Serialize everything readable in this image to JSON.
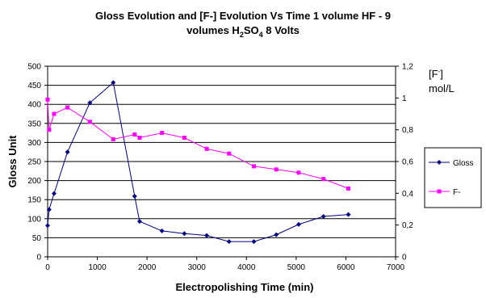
{
  "chart_data": {
    "type": "line",
    "title_line1": "Gloss Evolution and [F-] Evolution Vs Time  1 volume HF - 9",
    "title_line2_prefix": "volumes H",
    "title_line2_sub1": "2",
    "title_line2_mid": "SO",
    "title_line2_sub2": "4",
    "title_line2_suffix": "  8 Volts",
    "xlabel": "Electropolishing Time (min)",
    "ylabel": "Gloss Unit",
    "y2label_line1": "[F",
    "y2label_sup": "-",
    "y2label_line1_end": "]",
    "y2label_line2": "mol/L",
    "xlim": [
      0,
      7000
    ],
    "ylim": [
      0,
      500
    ],
    "y2lim": [
      0,
      1.2
    ],
    "x_ticks": [
      "0",
      "1000",
      "2000",
      "3000",
      "4000",
      "5000",
      "6000",
      "7000"
    ],
    "y_ticks": [
      "0",
      "50",
      "100",
      "150",
      "200",
      "250",
      "300",
      "350",
      "400",
      "450",
      "500"
    ],
    "y2_ticks": [
      "0",
      "0,2",
      "0,4",
      "0,6",
      "0,8",
      "1",
      "1,2"
    ],
    "grid": "horizontal",
    "legend_position": "right",
    "series": [
      {
        "name": "Gloss",
        "axis": "left",
        "color": "#000080",
        "marker": "diamond",
        "x": [
          0,
          30,
          130,
          400,
          850,
          1320,
          1750,
          1850,
          2300,
          2750,
          3200,
          3650,
          4150,
          4600,
          5050,
          5550,
          6050
        ],
        "y": [
          82,
          124,
          166,
          275,
          404,
          457,
          159,
          93,
          68,
          61,
          56,
          40,
          40,
          58,
          85,
          106,
          111
        ]
      },
      {
        "name": "F-",
        "axis": "right",
        "color": "#FF00FF",
        "marker": "square",
        "x": [
          0,
          30,
          130,
          400,
          850,
          1320,
          1750,
          1850,
          2300,
          2750,
          3200,
          3650,
          4150,
          4600,
          5050,
          5550,
          6050
        ],
        "y": [
          0.99,
          0.8,
          0.9,
          0.94,
          0.85,
          0.74,
          0.77,
          0.75,
          0.78,
          0.75,
          0.68,
          0.65,
          0.57,
          0.55,
          0.53,
          0.49,
          0.43
        ]
      }
    ]
  }
}
